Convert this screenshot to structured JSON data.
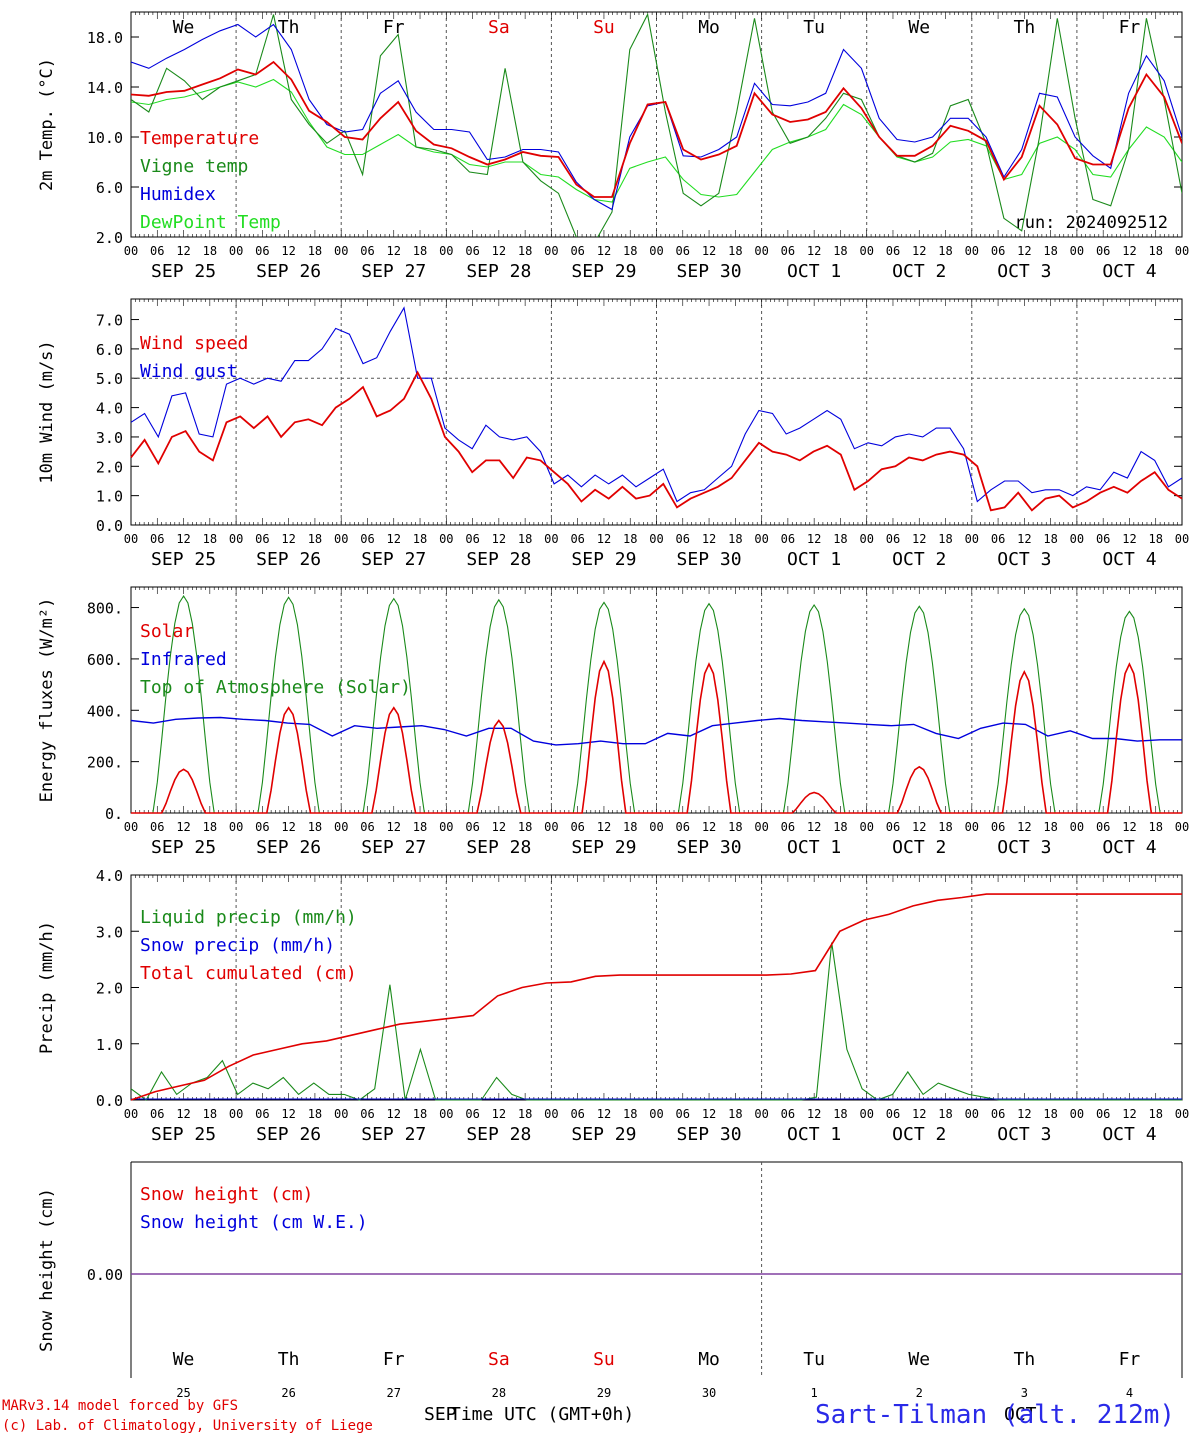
{
  "days": [
    "We",
    "Th",
    "Fr",
    "Sa",
    "Su",
    "Mo",
    "Tu",
    "We",
    "Th",
    "Fr"
  ],
  "day_colors": [
    "#000000",
    "#000000",
    "#000000",
    "#e00000",
    "#e00000",
    "#000000",
    "#000000",
    "#000000",
    "#000000",
    "#000000"
  ],
  "dates": [
    "SEP 25",
    "SEP 26",
    "SEP 27",
    "SEP 28",
    "SEP 29",
    "SEP 30",
    "OCT  1",
    "OCT  2",
    "OCT  3",
    "OCT  4"
  ],
  "hour_ticks": [
    "00",
    "06",
    "12",
    "18"
  ],
  "day_numbers": [
    "25",
    "26",
    "27",
    "28",
    "29",
    "30",
    "1",
    "2",
    "3",
    "4"
  ],
  "colors": {
    "red": "#e00000",
    "green": "#1a8a1a",
    "blue": "#0000dd",
    "lightgreen": "#22dd22",
    "purple": "#8040a0"
  },
  "footer": {
    "model": "MARv3.14 model forced by GFS",
    "lab": "(c) Lab. of Climatology, University of Liege",
    "month_left": "SEP",
    "axis_title": "Time UTC (GMT+0h)",
    "month_right": "OCT",
    "station": "Sart-Tilman (alt. 212m)"
  },
  "chart_data": [
    {
      "type": "line",
      "ylabel": "2m Temp. (°C)",
      "ylim": [
        2,
        20
      ],
      "yticks": [
        "2.0",
        "6.0",
        "10.0",
        "14.0",
        "18.0"
      ],
      "annotation": "run: 2024092512",
      "series": [
        {
          "name": "Temperature",
          "color": "red",
          "values": [
            13.4,
            13.3,
            13.6,
            13.7,
            14.2,
            14.7,
            15.4,
            15.0,
            16.0,
            14.6,
            12.1,
            11.2,
            10.0,
            9.8,
            11.5,
            12.8,
            10.5,
            9.4,
            9.1,
            8.4,
            7.8,
            8.2,
            8.8,
            8.5,
            8.4,
            6.2,
            5.2,
            5.2,
            9.5,
            12.6,
            12.8,
            9.0,
            8.2,
            8.6,
            9.3,
            13.5,
            11.8,
            11.2,
            11.4,
            12.0,
            13.9,
            12.3,
            10.0,
            8.5,
            8.5,
            9.3,
            10.9,
            10.5,
            9.7,
            6.6,
            8.4,
            12.5,
            11.0,
            8.3,
            7.8,
            7.8,
            12.3,
            15.0,
            13.2,
            9.5
          ]
        },
        {
          "name": "Vigne temp",
          "color": "green",
          "values": [
            13.0,
            12.0,
            15.5,
            14.5,
            13.0,
            14.0,
            14.5,
            15.0,
            19.8,
            13.0,
            11.0,
            9.5,
            10.5,
            7.0,
            16.5,
            18.2,
            9.2,
            9.0,
            8.6,
            7.2,
            7.0,
            15.5,
            8.0,
            6.5,
            5.5,
            2.0,
            1.5,
            4.0,
            17.0,
            19.8,
            12.0,
            5.5,
            4.5,
            5.5,
            12.0,
            19.5,
            12.0,
            9.5,
            10.0,
            11.5,
            13.5,
            13.0,
            10.0,
            8.5,
            8.0,
            8.7,
            12.5,
            13.0,
            9.5,
            3.5,
            2.5,
            10.0,
            19.5,
            11.5,
            5.0,
            4.5,
            9.0,
            19.5,
            13.0,
            5.5
          ]
        },
        {
          "name": "Humidex",
          "color": "blue",
          "values": [
            16.0,
            15.5,
            16.3,
            17.0,
            17.8,
            18.5,
            19.0,
            18.0,
            19.0,
            17.0,
            13.0,
            11.0,
            10.4,
            10.6,
            13.5,
            14.5,
            12.0,
            10.6,
            10.6,
            10.4,
            8.2,
            8.4,
            9.0,
            9.0,
            8.8,
            6.4,
            5.0,
            4.2,
            10.0,
            12.5,
            12.8,
            8.5,
            8.4,
            9.0,
            10.0,
            14.3,
            12.6,
            12.5,
            12.8,
            13.5,
            17.0,
            15.5,
            11.5,
            9.8,
            9.6,
            10.0,
            11.5,
            11.5,
            10.0,
            6.8,
            9.0,
            13.5,
            13.2,
            10.0,
            8.5,
            7.5,
            13.5,
            16.5,
            14.5,
            10.0
          ]
        },
        {
          "name": "DewPoint Temp",
          "color": "lightgreen",
          "values": [
            12.8,
            12.6,
            13.0,
            13.2,
            13.6,
            14.0,
            14.4,
            14.0,
            14.6,
            13.6,
            11.2,
            9.2,
            8.6,
            8.6,
            9.4,
            10.2,
            9.2,
            8.8,
            8.6,
            7.8,
            7.6,
            8.0,
            8.0,
            7.0,
            6.8,
            5.8,
            5.0,
            4.8,
            7.5,
            8.0,
            8.4,
            6.6,
            5.4,
            5.2,
            5.4,
            7.2,
            9.0,
            9.6,
            10.0,
            10.6,
            12.6,
            11.8,
            10.0,
            8.4,
            8.0,
            8.4,
            9.6,
            9.8,
            9.3,
            6.6,
            7.0,
            9.5,
            10.0,
            9.0,
            7.0,
            6.8,
            9.0,
            10.8,
            10.0,
            8.0
          ]
        }
      ]
    },
    {
      "type": "line",
      "ylabel": "10m Wind (m/s)",
      "ylim": [
        0,
        7.7
      ],
      "yticks": [
        "0.0",
        "1.0",
        "2.0",
        "3.0",
        "4.0",
        "5.0",
        "6.0",
        "7.0"
      ],
      "reference_line": 5.0,
      "series": [
        {
          "name": "Wind speed",
          "color": "red",
          "values": [
            2.3,
            2.9,
            2.1,
            3.0,
            3.2,
            2.5,
            2.2,
            3.5,
            3.7,
            3.3,
            3.7,
            3.0,
            3.5,
            3.6,
            3.4,
            4.0,
            4.3,
            4.7,
            3.7,
            3.9,
            4.3,
            5.2,
            4.3,
            3.0,
            2.5,
            1.8,
            2.2,
            2.2,
            1.6,
            2.3,
            2.2,
            1.8,
            1.4,
            0.8,
            1.2,
            0.9,
            1.3,
            0.9,
            1.0,
            1.4,
            0.6,
            0.9,
            1.1,
            1.3,
            1.6,
            2.2,
            2.8,
            2.5,
            2.4,
            2.2,
            2.5,
            2.7,
            2.4,
            1.2,
            1.5,
            1.9,
            2.0,
            2.3,
            2.2,
            2.4,
            2.5,
            2.4,
            2.0,
            0.5,
            0.6,
            1.1,
            0.5,
            0.9,
            1.0,
            0.6,
            0.8,
            1.1,
            1.3,
            1.1,
            1.5,
            1.8,
            1.2,
            0.9
          ]
        },
        {
          "name": "Wind gust",
          "color": "blue",
          "values": [
            3.5,
            3.8,
            3.0,
            4.4,
            4.5,
            3.1,
            3.0,
            4.8,
            5.0,
            4.8,
            5.0,
            4.9,
            5.6,
            5.6,
            6.0,
            6.7,
            6.5,
            5.5,
            5.7,
            6.6,
            7.4,
            5.0,
            5.0,
            3.3,
            2.9,
            2.6,
            3.4,
            3.0,
            2.9,
            3.0,
            2.5,
            1.4,
            1.7,
            1.3,
            1.7,
            1.4,
            1.7,
            1.3,
            1.6,
            1.9,
            0.8,
            1.1,
            1.2,
            1.6,
            2.0,
            3.1,
            3.9,
            3.8,
            3.1,
            3.3,
            3.6,
            3.9,
            3.6,
            2.6,
            2.8,
            2.7,
            3.0,
            3.1,
            3.0,
            3.3,
            3.3,
            2.6,
            0.8,
            1.2,
            1.5,
            1.5,
            1.1,
            1.2,
            1.2,
            1.0,
            1.3,
            1.2,
            1.8,
            1.6,
            2.5,
            2.2,
            1.3,
            1.6
          ]
        }
      ]
    },
    {
      "type": "line",
      "ylabel": "Energy fluxes (W/m²)",
      "ylim": [
        0,
        880
      ],
      "yticks": [
        "0.",
        "200.",
        "400.",
        "600.",
        "800."
      ],
      "series": [
        {
          "name": "Solar",
          "color": "red",
          "peaks": [
            170,
            410,
            410,
            360,
            590,
            580,
            80,
            180,
            550,
            580
          ]
        },
        {
          "name": "Infrared",
          "color": "blue",
          "values": [
            360,
            350,
            365,
            370,
            372,
            365,
            360,
            350,
            345,
            300,
            340,
            330,
            335,
            340,
            325,
            300,
            330,
            330,
            280,
            265,
            270,
            280,
            270,
            270,
            310,
            300,
            340,
            350,
            360,
            368,
            360,
            355,
            350,
            345,
            340,
            345,
            310,
            290,
            330,
            350,
            345,
            300,
            320,
            290,
            290,
            280,
            285,
            285
          ]
        },
        {
          "name": "Top of Atmosphere (Solar)",
          "color": "green",
          "peaks": [
            845,
            840,
            835,
            830,
            820,
            815,
            810,
            805,
            795,
            785
          ]
        }
      ]
    },
    {
      "type": "line",
      "ylabel": "Precip (mm/h)",
      "ylim": [
        0,
        4.0
      ],
      "yticks": [
        "0.0",
        "1.0",
        "2.0",
        "3.0",
        "4.0"
      ],
      "series": [
        {
          "name": "Liquid precip (mm/h)",
          "color": "green",
          "values": [
            0.2,
            0.0,
            0.5,
            0.1,
            0.3,
            0.4,
            0.7,
            0.1,
            0.3,
            0.2,
            0.4,
            0.1,
            0.3,
            0.1,
            0.1,
            0.0,
            0.2,
            2.05,
            0.0,
            0.9,
            0.0,
            0.0,
            0.0,
            0.0,
            0.4,
            0.1,
            0.0,
            0.0,
            0.0,
            0.0,
            0.0,
            0.0,
            0.0,
            0.0,
            0.0,
            0.0,
            0.0,
            0.0,
            0.0,
            0.0,
            0.0,
            0.0,
            0.0,
            0.0,
            0.0,
            0.05,
            2.8,
            0.9,
            0.2,
            0.0,
            0.1,
            0.5,
            0.1,
            0.3,
            0.2,
            0.1,
            0.05,
            0.0,
            0.0,
            0.0,
            0.0,
            0.0,
            0.0,
            0.0,
            0.0,
            0.0,
            0.0,
            0.0,
            0.0,
            0.0
          ]
        },
        {
          "name": "Snow precip (mm/h)",
          "color": "blue",
          "values": [
            0,
            0
          ]
        },
        {
          "name": "Total cumulated (cm)",
          "color": "red",
          "values": [
            0.0,
            0.15,
            0.25,
            0.35,
            0.6,
            0.8,
            0.9,
            1.0,
            1.05,
            1.15,
            1.25,
            1.35,
            1.4,
            1.45,
            1.5,
            1.85,
            2.0,
            2.08,
            2.1,
            2.2,
            2.22,
            2.22,
            2.22,
            2.22,
            2.22,
            2.22,
            2.22,
            2.24,
            2.3,
            3.0,
            3.2,
            3.3,
            3.45,
            3.55,
            3.6,
            3.66,
            3.66,
            3.66,
            3.66,
            3.66,
            3.66,
            3.66,
            3.66,
            3.66
          ]
        }
      ]
    },
    {
      "type": "line",
      "ylabel": "Snow height (cm)",
      "yticks": [
        "0.00"
      ],
      "series": [
        {
          "name": "Snow height (cm)",
          "color": "red",
          "values": [
            0,
            0
          ]
        },
        {
          "name": "Snow height (cm W.E.)",
          "color": "blue",
          "values": [
            0,
            0
          ]
        }
      ]
    }
  ]
}
